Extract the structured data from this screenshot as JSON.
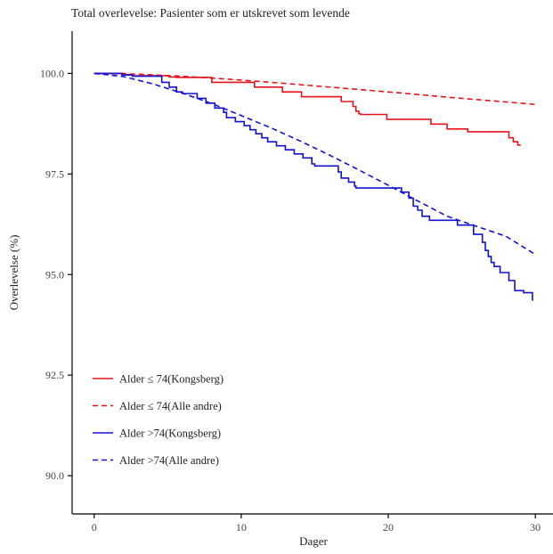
{
  "chart_data": {
    "type": "line",
    "title": "Total overlevelse: Pasienter som er utskrevet som levende",
    "xlabel": "Dager",
    "ylabel": "Overlevelse (%)",
    "xlim": [
      -1.5,
      31.2
    ],
    "ylim": [
      89.05,
      101.05
    ],
    "xticks": [
      "0",
      "10",
      "20",
      "30"
    ],
    "yticks": [
      "90.0",
      "92.5",
      "95.0",
      "97.5",
      "100.0"
    ],
    "grid": false,
    "legend_position": "bottom-left",
    "series": [
      {
        "name": "Alder ≤ 74(Kongsberg)",
        "color": "#e8141b",
        "dash": false,
        "step": true,
        "x": [
          0,
          2.1,
          2.6,
          5.1,
          5.6,
          8.0,
          10.9,
          12.8,
          14.1,
          16.8,
          17.6,
          17.8,
          18.0,
          18.1,
          19.9,
          22.9,
          24.0,
          25.4,
          28.2,
          28.5,
          28.8,
          29.0
        ],
        "y": [
          100.0,
          99.97,
          99.94,
          99.91,
          99.9,
          99.78,
          99.66,
          99.54,
          99.42,
          99.3,
          99.18,
          99.06,
          99.0,
          98.98,
          98.86,
          98.74,
          98.62,
          98.55,
          98.4,
          98.3,
          98.22,
          98.22
        ]
      },
      {
        "name": "Alder ≤ 74(Alle andre)",
        "color": "#e8141b",
        "dash": true,
        "step": false,
        "x": [
          0,
          3,
          6,
          9,
          12,
          15,
          18,
          21,
          24,
          27,
          30
        ],
        "y": [
          100.0,
          99.98,
          99.93,
          99.86,
          99.78,
          99.69,
          99.6,
          99.51,
          99.41,
          99.32,
          99.23
        ]
      },
      {
        "name": "Alder >74(Kongsberg)",
        "color": "#1212d6",
        "dash": false,
        "step": true,
        "x": [
          0,
          1.9,
          2.6,
          4.6,
          5.1,
          5.6,
          6.0,
          7.0,
          7.6,
          8.2,
          8.8,
          9.0,
          9.6,
          10.2,
          10.6,
          11.0,
          11.4,
          11.8,
          12.4,
          13.0,
          13.6,
          14.2,
          14.8,
          15.0,
          15.2,
          16.6,
          16.8,
          17.3,
          17.7,
          17.8,
          18.2,
          20.9,
          21.4,
          21.7,
          22.0,
          22.3,
          22.8,
          23.0,
          24.7,
          25.8,
          26.4,
          26.6,
          26.8,
          27.0,
          27.2,
          27.6,
          28.2,
          28.6,
          29.2,
          29.8
        ],
        "y": [
          100.0,
          99.96,
          99.93,
          99.78,
          99.66,
          99.54,
          99.5,
          99.38,
          99.26,
          99.14,
          99.03,
          98.9,
          98.8,
          98.7,
          98.6,
          98.5,
          98.4,
          98.3,
          98.2,
          98.1,
          98.0,
          97.9,
          97.75,
          97.7,
          97.7,
          97.55,
          97.4,
          97.3,
          97.2,
          97.15,
          97.15,
          97.05,
          96.9,
          96.7,
          96.6,
          96.45,
          96.35,
          96.35,
          96.23,
          96.0,
          95.8,
          95.6,
          95.45,
          95.3,
          95.2,
          95.05,
          94.85,
          94.6,
          94.55,
          94.35
        ]
      },
      {
        "name": "Alder >74(Alle andre)",
        "color": "#1212d6",
        "dash": true,
        "step": false,
        "x": [
          0,
          2,
          4,
          6,
          8,
          10,
          12,
          14,
          16,
          18,
          20,
          22,
          24,
          26,
          28,
          30
        ],
        "y": [
          100.0,
          99.92,
          99.74,
          99.51,
          99.25,
          98.95,
          98.65,
          98.32,
          97.97,
          97.6,
          97.22,
          96.83,
          96.45,
          96.2,
          95.95,
          95.5
        ]
      }
    ]
  }
}
